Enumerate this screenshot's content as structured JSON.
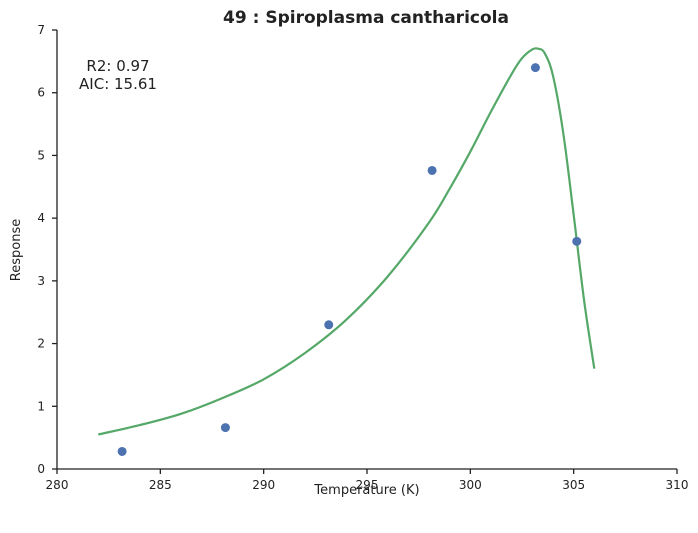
{
  "chart_data": {
    "type": "scatter",
    "title": "49 : Spiroplasma cantharicola",
    "xlabel": "Temperature (K)",
    "ylabel": "Response",
    "xlim": [
      280,
      310
    ],
    "ylim": [
      0,
      7
    ],
    "xticks": [
      280,
      285,
      290,
      295,
      300,
      305,
      310
    ],
    "yticks": [
      0,
      1,
      2,
      3,
      4,
      5,
      6,
      7
    ],
    "xtick_labels": [
      "280",
      "285",
      "290",
      "295",
      "300",
      "305",
      "310"
    ],
    "ytick_labels": [
      "0",
      "1",
      "2",
      "3",
      "4",
      "5",
      "6",
      "7"
    ],
    "annotations": [
      "R2: 0.97",
      "AIC: 15.61"
    ],
    "grid": false,
    "points": {
      "color": "#4c72b0",
      "x": [
        283.15,
        288.15,
        293.15,
        298.15,
        303.15,
        305.15
      ],
      "y": [
        0.28,
        0.66,
        2.3,
        4.76,
        6.4,
        3.63
      ]
    },
    "fit_curve": {
      "color": "#55a868",
      "x": [
        282.0,
        284.0,
        286.0,
        288.0,
        290.0,
        292.0,
        294.0,
        296.0,
        298.0,
        299.0,
        300.0,
        301.0,
        302.0,
        302.5,
        303.0,
        303.3,
        303.6,
        304.0,
        304.5,
        305.0,
        305.5,
        306.0
      ],
      "y": [
        0.55,
        0.7,
        0.88,
        1.13,
        1.43,
        1.85,
        2.38,
        3.07,
        3.93,
        4.47,
        5.06,
        5.7,
        6.3,
        6.55,
        6.69,
        6.7,
        6.63,
        6.27,
        5.35,
        4.05,
        2.7,
        1.6
      ]
    }
  }
}
